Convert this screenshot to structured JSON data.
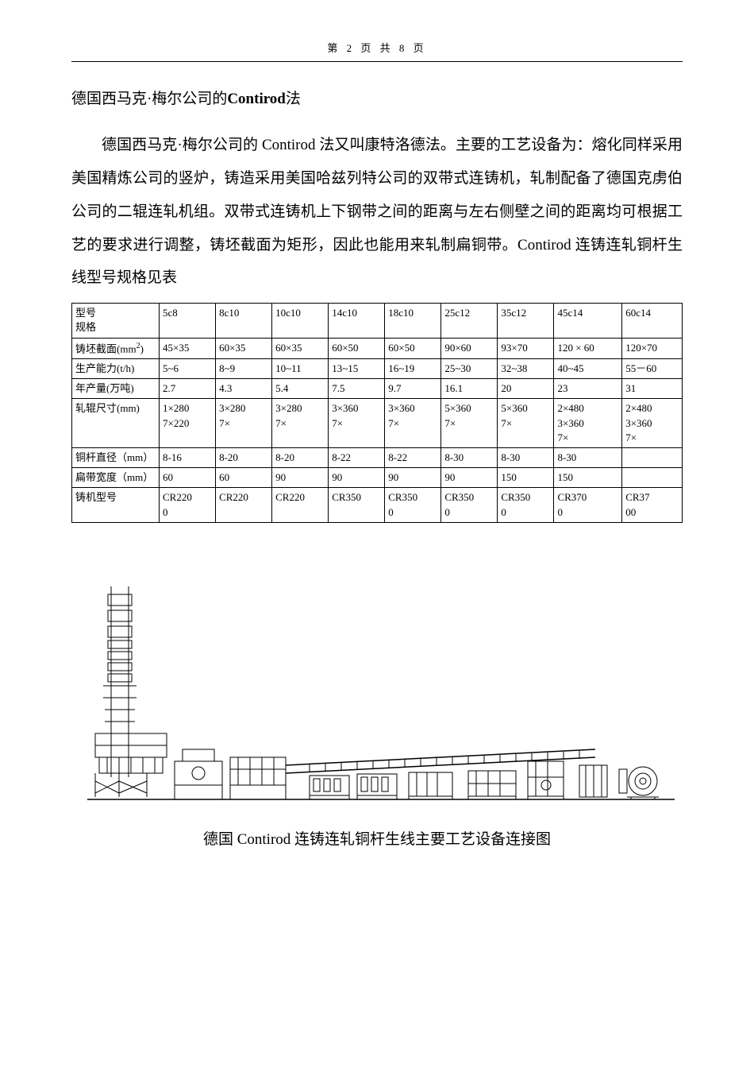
{
  "header": {
    "text": "第 2 页 共 8 页"
  },
  "title": {
    "prefix": "德国西马克·梅尔公司的",
    "bold": "Contirod",
    "suffix": "法"
  },
  "paragraph": "德国西马克·梅尔公司的 Contirod 法又叫康特洛德法。主要的工艺设备为：熔化同样采用美国精炼公司的竖炉，铸造采用美国哈兹列特公司的双带式连铸机，轧制配备了德国克虏伯公司的二辊连轧机组。双带式连铸机上下钢带之间的距离与左右侧壁之间的距离均可根据工艺的要求进行调整，铸坯截面为矩形，因此也能用来轧制扁铜带。Contirod 连铸连轧铜杆生线型号规格见表",
  "table": {
    "columns": [
      "型号\n规格",
      "5c8",
      "8c10",
      "10c10",
      "14c10",
      "18c10",
      "25c12",
      "35c12",
      "45c14",
      "60c14"
    ],
    "rows": [
      {
        "label": "铸坯截面(mm²)",
        "cells": [
          "45×35",
          "60×35",
          "60×35",
          "60×50",
          "60×50",
          "90×60",
          "93×70",
          "120 × 60",
          "120×70"
        ]
      },
      {
        "label": "生产能力(t/h)",
        "cells": [
          "5~6",
          "8~9",
          "10~11",
          "13~15",
          "16~19",
          "25~30",
          "32~38",
          "40~45",
          "55－60"
        ]
      },
      {
        "label": "年产量(万吨)",
        "cells": [
          "2.7",
          "4.3",
          "5.4",
          "7.5",
          "9.7",
          "16.1",
          "20",
          "23",
          "31"
        ]
      },
      {
        "label": "轧辊尺寸(mm)",
        "cells": [
          "1×280\n7×220",
          "3×280\n7×",
          "3×280\n7×",
          "3×360\n7×",
          "3×360\n7×",
          "5×360\n7×",
          "5×360\n7×",
          "2×480\n3×360\n7×",
          "2×480\n3×360\n7×"
        ]
      },
      {
        "label": "铜杆直径（mm）",
        "cells": [
          "8-16",
          "8-20",
          "8-20",
          "8-22",
          "8-22",
          "8-30",
          "8-30",
          "8-30",
          ""
        ]
      },
      {
        "label": "扁带宽度（mm）",
        "cells": [
          "60",
          "60",
          "90",
          "90",
          "90",
          "90",
          "150",
          "150",
          ""
        ]
      },
      {
        "label": "铸机型号",
        "cells": [
          "CR220\n0",
          "CR220",
          "CR220",
          "CR350",
          "CR350\n0",
          "CR350\n0",
          "CR350\n0",
          "CR370\n0",
          "CR37\n00"
        ]
      }
    ],
    "border_color": "#000000",
    "font_size": 13
  },
  "diagram": {
    "type": "engineering-schematic",
    "description": "德国Contirod连铸连轧铜杆生线主要工艺设备连接图",
    "stroke": "#000000",
    "background": "#ffffff"
  },
  "caption": "德国 Contirod 连铸连轧铜杆生线主要工艺设备连接图"
}
